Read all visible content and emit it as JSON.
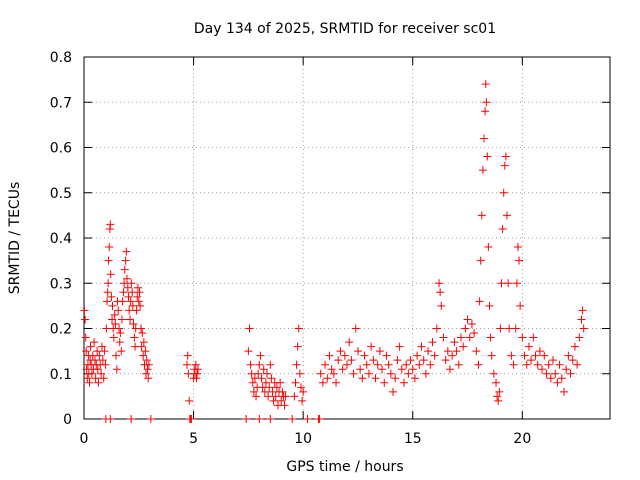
{
  "chart_data": {
    "type": "scatter",
    "title": "Day 134 of 2025, SRMTID for receiver sc01",
    "xlabel": "GPS time / hours",
    "ylabel": "SRMTID / TECUs",
    "xlim": [
      0,
      24
    ],
    "ylim": [
      0,
      0.8
    ],
    "xticks": [
      0,
      5,
      10,
      15,
      20
    ],
    "xtick_labels": [
      "0",
      "5",
      "10",
      "15",
      "20"
    ],
    "yticks": [
      0,
      0.1,
      0.2,
      0.3,
      0.4,
      0.5,
      0.6,
      0.7,
      0.8
    ],
    "ytick_labels": [
      "0",
      "0.1",
      "0.2",
      "0.3",
      "0.4",
      "0.5",
      "0.6",
      "0.7",
      "0.8"
    ],
    "grid": true,
    "marker": "+",
    "marker_color": "#ff0000",
    "series": [
      {
        "name": "sc01",
        "points": [
          [
            0.02,
            0.24
          ],
          [
            0.05,
            0.22
          ],
          [
            0.08,
            0.18
          ],
          [
            0.1,
            0.15
          ],
          [
            0.12,
            0.11
          ],
          [
            0.15,
            0.09
          ],
          [
            0.18,
            0.12
          ],
          [
            0.2,
            0.14
          ],
          [
            0.22,
            0.1
          ],
          [
            0.25,
            0.08
          ],
          [
            0.28,
            0.13
          ],
          [
            0.3,
            0.16
          ],
          [
            0.33,
            0.12
          ],
          [
            0.36,
            0.1
          ],
          [
            0.4,
            0.14
          ],
          [
            0.43,
            0.11
          ],
          [
            0.46,
            0.17
          ],
          [
            0.5,
            0.13
          ],
          [
            0.53,
            0.09
          ],
          [
            0.56,
            0.12
          ],
          [
            0.6,
            0.15
          ],
          [
            0.63,
            0.11
          ],
          [
            0.66,
            0.08
          ],
          [
            0.7,
            0.14
          ],
          [
            0.74,
            0.12
          ],
          [
            0.78,
            0.1
          ],
          [
            0.82,
            0.16
          ],
          [
            0.86,
            0.13
          ],
          [
            0.9,
            0.09
          ],
          [
            0.94,
            0.15
          ],
          [
            0.98,
            0.12
          ],
          [
            1.02,
            0.2
          ],
          [
            1.05,
            0.26
          ],
          [
            1.08,
            0.28
          ],
          [
            1.1,
            0.3
          ],
          [
            1.12,
            0.35
          ],
          [
            1.15,
            0.38
          ],
          [
            1.18,
            0.42
          ],
          [
            1.2,
            0.43
          ],
          [
            1.22,
            0.32
          ],
          [
            1.25,
            0.27
          ],
          [
            1.28,
            0.22
          ],
          [
            1.3,
            0.25
          ],
          [
            1.33,
            0.2
          ],
          [
            1.36,
            0.18
          ],
          [
            1.4,
            0.23
          ],
          [
            1.43,
            0.21
          ],
          [
            1.46,
            0.14
          ],
          [
            1.5,
            0.11
          ],
          [
            1.53,
            0.26
          ],
          [
            1.56,
            0.24
          ],
          [
            1.6,
            0.2
          ],
          [
            1.63,
            0.17
          ],
          [
            1.66,
            0.19
          ],
          [
            1.7,
            0.15
          ],
          [
            1.73,
            0.22
          ],
          [
            1.76,
            0.26
          ],
          [
            1.8,
            0.28
          ],
          [
            1.83,
            0.3
          ],
          [
            1.86,
            0.33
          ],
          [
            1.9,
            0.35
          ],
          [
            1.93,
            0.37
          ],
          [
            1.96,
            0.31
          ],
          [
            2.0,
            0.29
          ],
          [
            2.03,
            0.27
          ],
          [
            2.06,
            0.24
          ],
          [
            2.1,
            0.22
          ],
          [
            2.13,
            0.26
          ],
          [
            2.16,
            0.3
          ],
          [
            2.2,
            0.28
          ],
          [
            2.23,
            0.25
          ],
          [
            2.26,
            0.21
          ],
          [
            2.3,
            0.18
          ],
          [
            2.33,
            0.16
          ],
          [
            2.36,
            0.2
          ],
          [
            2.4,
            0.24
          ],
          [
            2.43,
            0.27
          ],
          [
            2.46,
            0.29
          ],
          [
            2.5,
            0.26
          ],
          [
            2.53,
            0.28
          ],
          [
            2.56,
            0.25
          ],
          [
            2.6,
            0.2
          ],
          [
            2.63,
            0.16
          ],
          [
            2.66,
            0.19
          ],
          [
            2.7,
            0.14
          ],
          [
            2.73,
            0.17
          ],
          [
            2.76,
            0.12
          ],
          [
            2.8,
            0.15
          ],
          [
            2.83,
            0.1
          ],
          [
            2.86,
            0.13
          ],
          [
            2.9,
            0.11
          ],
          [
            2.93,
            0.09
          ],
          [
            2.96,
            0.12
          ],
          [
            1.0,
            0.0
          ],
          [
            1.2,
            0.0
          ],
          [
            2.15,
            0.0
          ],
          [
            3.05,
            0.0
          ],
          [
            4.7,
            0.12
          ],
          [
            4.73,
            0.14
          ],
          [
            4.76,
            0.1
          ],
          [
            4.8,
            0.04
          ],
          [
            4.83,
            0.0
          ],
          [
            4.86,
            0.0
          ],
          [
            4.9,
            0.0
          ],
          [
            5.0,
            0.09
          ],
          [
            5.03,
            0.11
          ],
          [
            5.06,
            0.1
          ],
          [
            5.1,
            0.12
          ],
          [
            5.13,
            0.09
          ],
          [
            5.16,
            0.1
          ],
          [
            5.2,
            0.11
          ],
          [
            7.4,
            0.0
          ],
          [
            7.5,
            0.15
          ],
          [
            7.55,
            0.2
          ],
          [
            7.6,
            0.12
          ],
          [
            7.65,
            0.1
          ],
          [
            7.7,
            0.08
          ],
          [
            7.75,
            0.06
          ],
          [
            7.8,
            0.09
          ],
          [
            7.85,
            0.05
          ],
          [
            7.9,
            0.07
          ],
          [
            7.95,
            0.1
          ],
          [
            8.0,
            0.12
          ],
          [
            8.05,
            0.14
          ],
          [
            8.1,
            0.09
          ],
          [
            8.15,
            0.07
          ],
          [
            8.2,
            0.11
          ],
          [
            8.25,
            0.06
          ],
          [
            8.3,
            0.08
          ],
          [
            8.35,
            0.1
          ],
          [
            8.4,
            0.05
          ],
          [
            8.45,
            0.07
          ],
          [
            8.5,
            0.12
          ],
          [
            8.55,
            0.09
          ],
          [
            8.6,
            0.06
          ],
          [
            8.65,
            0.04
          ],
          [
            8.7,
            0.08
          ],
          [
            8.75,
            0.05
          ],
          [
            8.8,
            0.07
          ],
          [
            8.85,
            0.03
          ],
          [
            8.9,
            0.06
          ],
          [
            8.95,
            0.08
          ],
          [
            9.0,
            0.04
          ],
          [
            9.05,
            0.06
          ],
          [
            9.1,
            0.05
          ],
          [
            9.15,
            0.03
          ],
          [
            9.2,
            0.05
          ],
          [
            8.0,
            0.0
          ],
          [
            8.5,
            0.0
          ],
          [
            9.5,
            0.0
          ],
          [
            9.6,
            0.05
          ],
          [
            9.65,
            0.08
          ],
          [
            9.7,
            0.12
          ],
          [
            9.75,
            0.16
          ],
          [
            9.8,
            0.2
          ],
          [
            9.85,
            0.1
          ],
          [
            9.9,
            0.07
          ],
          [
            9.95,
            0.04
          ],
          [
            10.0,
            0.06
          ],
          [
            10.2,
            0.0
          ],
          [
            10.7,
            0.0
          ],
          [
            10.75,
            0.0
          ],
          [
            10.8,
            0.1
          ],
          [
            10.9,
            0.08
          ],
          [
            11.0,
            0.12
          ],
          [
            11.1,
            0.09
          ],
          [
            11.2,
            0.14
          ],
          [
            11.3,
            0.11
          ],
          [
            11.4,
            0.1
          ],
          [
            11.5,
            0.08
          ],
          [
            11.6,
            0.13
          ],
          [
            11.7,
            0.15
          ],
          [
            11.8,
            0.11
          ],
          [
            11.9,
            0.14
          ],
          [
            12.0,
            0.12
          ],
          [
            12.1,
            0.17
          ],
          [
            12.2,
            0.13
          ],
          [
            12.3,
            0.1
          ],
          [
            12.4,
            0.2
          ],
          [
            12.5,
            0.15
          ],
          [
            12.6,
            0.11
          ],
          [
            12.7,
            0.09
          ],
          [
            12.8,
            0.14
          ],
          [
            12.9,
            0.12
          ],
          [
            13.0,
            0.1
          ],
          [
            13.1,
            0.16
          ],
          [
            13.2,
            0.13
          ],
          [
            13.3,
            0.09
          ],
          [
            13.4,
            0.12
          ],
          [
            13.5,
            0.15
          ],
          [
            13.6,
            0.11
          ],
          [
            13.7,
            0.08
          ],
          [
            13.8,
            0.14
          ],
          [
            13.9,
            0.12
          ],
          [
            14.0,
            0.1
          ],
          [
            14.1,
            0.06
          ],
          [
            14.2,
            0.09
          ],
          [
            14.3,
            0.13
          ],
          [
            14.4,
            0.16
          ],
          [
            14.5,
            0.11
          ],
          [
            14.6,
            0.08
          ],
          [
            14.7,
            0.12
          ],
          [
            14.8,
            0.1
          ],
          [
            14.9,
            0.13
          ],
          [
            15.0,
            0.11
          ],
          [
            15.1,
            0.09
          ],
          [
            15.2,
            0.14
          ],
          [
            15.3,
            0.12
          ],
          [
            15.4,
            0.16
          ],
          [
            15.5,
            0.13
          ],
          [
            15.6,
            0.1
          ],
          [
            15.7,
            0.15
          ],
          [
            15.8,
            0.12
          ],
          [
            15.9,
            0.17
          ],
          [
            16.0,
            0.14
          ],
          [
            16.1,
            0.2
          ],
          [
            16.2,
            0.3
          ],
          [
            16.25,
            0.28
          ],
          [
            16.3,
            0.25
          ],
          [
            16.4,
            0.18
          ],
          [
            16.5,
            0.13
          ],
          [
            16.6,
            0.15
          ],
          [
            16.7,
            0.11
          ],
          [
            16.8,
            0.14
          ],
          [
            16.9,
            0.17
          ],
          [
            17.0,
            0.15
          ],
          [
            17.1,
            0.12
          ],
          [
            17.2,
            0.18
          ],
          [
            17.3,
            0.16
          ],
          [
            17.4,
            0.2
          ],
          [
            17.5,
            0.22
          ],
          [
            17.6,
            0.18
          ],
          [
            17.7,
            0.21
          ],
          [
            17.8,
            0.19
          ],
          [
            17.9,
            0.15
          ],
          [
            18.0,
            0.12
          ],
          [
            18.05,
            0.26
          ],
          [
            18.1,
            0.35
          ],
          [
            18.15,
            0.45
          ],
          [
            18.2,
            0.55
          ],
          [
            18.25,
            0.62
          ],
          [
            18.3,
            0.68
          ],
          [
            18.33,
            0.74
          ],
          [
            18.36,
            0.7
          ],
          [
            18.4,
            0.58
          ],
          [
            18.45,
            0.38
          ],
          [
            18.5,
            0.25
          ],
          [
            18.55,
            0.18
          ],
          [
            18.6,
            0.14
          ],
          [
            18.7,
            0.1
          ],
          [
            18.8,
            0.08
          ],
          [
            18.85,
            0.05
          ],
          [
            18.9,
            0.04
          ],
          [
            18.95,
            0.06
          ],
          [
            19.0,
            0.2
          ],
          [
            19.05,
            0.3
          ],
          [
            19.1,
            0.42
          ],
          [
            19.15,
            0.5
          ],
          [
            19.2,
            0.56
          ],
          [
            19.25,
            0.58
          ],
          [
            19.3,
            0.45
          ],
          [
            19.35,
            0.3
          ],
          [
            19.4,
            0.2
          ],
          [
            19.5,
            0.14
          ],
          [
            19.6,
            0.12
          ],
          [
            19.7,
            0.2
          ],
          [
            19.75,
            0.3
          ],
          [
            19.8,
            0.38
          ],
          [
            19.85,
            0.35
          ],
          [
            19.9,
            0.25
          ],
          [
            20.0,
            0.18
          ],
          [
            20.1,
            0.14
          ],
          [
            20.2,
            0.12
          ],
          [
            20.3,
            0.16
          ],
          [
            20.4,
            0.13
          ],
          [
            20.5,
            0.18
          ],
          [
            20.6,
            0.14
          ],
          [
            20.7,
            0.12
          ],
          [
            20.8,
            0.15
          ],
          [
            20.9,
            0.11
          ],
          [
            21.0,
            0.14
          ],
          [
            21.1,
            0.1
          ],
          [
            21.2,
            0.12
          ],
          [
            21.3,
            0.09
          ],
          [
            21.4,
            0.13
          ],
          [
            21.5,
            0.1
          ],
          [
            21.6,
            0.08
          ],
          [
            21.7,
            0.12
          ],
          [
            21.8,
            0.09
          ],
          [
            21.9,
            0.06
          ],
          [
            22.0,
            0.11
          ],
          [
            22.1,
            0.14
          ],
          [
            22.2,
            0.1
          ],
          [
            22.3,
            0.13
          ],
          [
            22.4,
            0.16
          ],
          [
            22.5,
            0.12
          ],
          [
            22.6,
            0.18
          ],
          [
            22.7,
            0.22
          ],
          [
            22.75,
            0.24
          ],
          [
            22.8,
            0.2
          ]
        ]
      }
    ]
  }
}
